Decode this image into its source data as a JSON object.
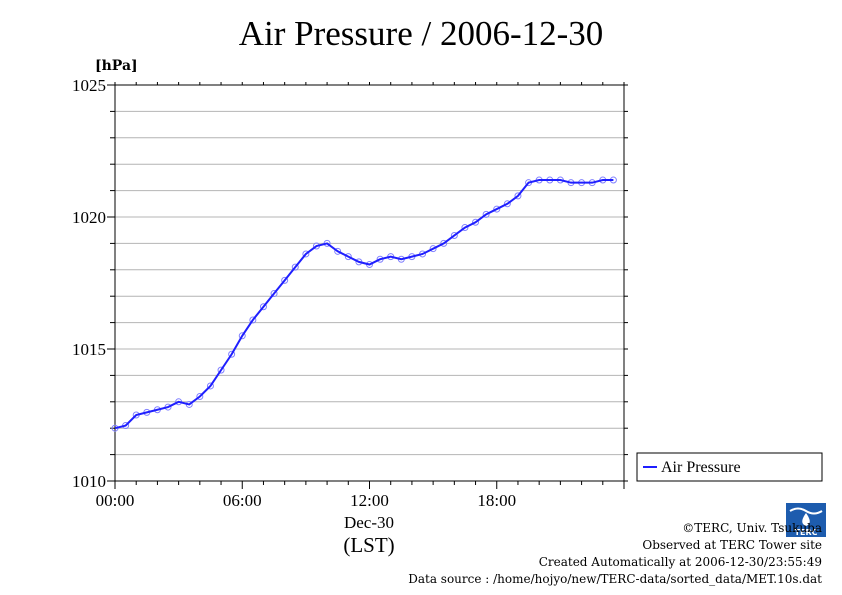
{
  "chart_data": {
    "type": "line",
    "title": "Air Pressure / 2006-12-30",
    "ylabel": "[hPa]",
    "xlabel": "(LST)",
    "x_date_label": "Dec-30",
    "ylim": [
      1010,
      1025
    ],
    "xlim": [
      0,
      24
    ],
    "yticks": [
      1010,
      1015,
      1020,
      1025
    ],
    "ytick_labels": [
      "1010",
      "1015",
      "1020",
      "1025"
    ],
    "xticks": [
      0,
      6,
      12,
      18
    ],
    "xtick_labels": [
      "00:00",
      "06:00",
      "12:00",
      "18:00"
    ],
    "grid": true,
    "legend_position": "right",
    "series": [
      {
        "name": "Air Pressure",
        "color": "#1f1fff",
        "x": [
          0.0,
          0.5,
          1.0,
          1.5,
          2.0,
          2.5,
          3.0,
          3.5,
          4.0,
          4.5,
          5.0,
          5.5,
          6.0,
          6.5,
          7.0,
          7.5,
          8.0,
          8.5,
          9.0,
          9.5,
          10.0,
          10.5,
          11.0,
          11.5,
          12.0,
          12.5,
          13.0,
          13.5,
          14.0,
          14.5,
          15.0,
          15.5,
          16.0,
          16.5,
          17.0,
          17.5,
          18.0,
          18.5,
          19.0,
          19.5,
          20.0,
          20.5,
          21.0,
          21.5,
          22.0,
          22.5,
          23.0,
          23.5
        ],
        "values": [
          1012.0,
          1012.1,
          1012.5,
          1012.6,
          1012.7,
          1012.8,
          1013.0,
          1012.9,
          1013.2,
          1013.6,
          1014.2,
          1014.8,
          1015.5,
          1016.1,
          1016.6,
          1017.1,
          1017.6,
          1018.1,
          1018.6,
          1018.9,
          1019.0,
          1018.7,
          1018.5,
          1018.3,
          1018.2,
          1018.4,
          1018.5,
          1018.4,
          1018.5,
          1018.6,
          1018.8,
          1019.0,
          1019.3,
          1019.6,
          1019.8,
          1020.1,
          1020.3,
          1020.5,
          1020.8,
          1021.3,
          1021.4,
          1021.4,
          1021.4,
          1021.3,
          1021.3,
          1021.3,
          1021.4,
          1021.4
        ]
      }
    ]
  },
  "legend": {
    "label": "Air Pressure"
  },
  "footer": {
    "copyright": "©TERC, Univ. Tsukuba",
    "site": "Observed at TERC Tower site",
    "created": "Created Automatically at 2006-12-30/23:55:49",
    "source": "Data source : /home/hojyo/new/TERC-data/sorted_data/MET.10s.dat",
    "logo_text": "TERC"
  },
  "colors": {
    "line": "#1f1fff",
    "marker": "#8080ff",
    "grid": "#b4b4b4",
    "logo": "#1d5cae"
  }
}
